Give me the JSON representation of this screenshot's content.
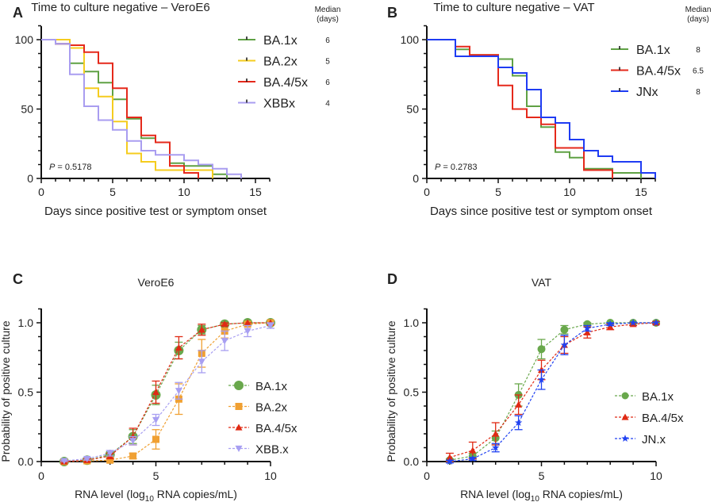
{
  "chart_data": [
    {
      "panel": "A",
      "type": "line",
      "subtype": "kaplan-meier-step",
      "title": "Time to culture negative – VeroE6",
      "xlabel": "Days since positive test or symptom onset",
      "ylabel": "",
      "xlim": [
        0,
        16
      ],
      "ylim": [
        0,
        110
      ],
      "xticks": [
        "0",
        "5",
        "10",
        "15"
      ],
      "yticks": [
        "0",
        "50",
        "100"
      ],
      "median_header": [
        "Median",
        "(days)"
      ],
      "annotation": {
        "p_label": "P",
        "p_value": "= 0.5178"
      },
      "legend_position": "top-right",
      "series": [
        {
          "name": "BA.1x",
          "color": "#5fa144",
          "median": "6",
          "steps": [
            [
              0,
              100
            ],
            [
              1,
              97
            ],
            [
              2,
              83
            ],
            [
              3,
              77
            ],
            [
              4,
              69
            ],
            [
              5,
              57
            ],
            [
              6,
              43
            ],
            [
              7,
              29
            ],
            [
              8,
              26
            ],
            [
              9,
              11
            ],
            [
              10,
              9
            ],
            [
              12,
              3
            ],
            [
              13,
              0
            ]
          ]
        },
        {
          "name": "BA.2x",
          "color": "#f5cc1e",
          "median": "5",
          "steps": [
            [
              0,
              100
            ],
            [
              2,
              94
            ],
            [
              3,
              65
            ],
            [
              4,
              59
            ],
            [
              5,
              41
            ],
            [
              6,
              18
            ],
            [
              7,
              12
            ],
            [
              8,
              6
            ],
            [
              12,
              0
            ]
          ]
        },
        {
          "name": "BA.4/5x",
          "color": "#e5291b",
          "median": "6",
          "steps": [
            [
              0,
              100
            ],
            [
              1,
              97
            ],
            [
              2,
              96
            ],
            [
              3,
              91
            ],
            [
              4,
              83
            ],
            [
              5,
              65
            ],
            [
              6,
              44
            ],
            [
              7,
              31
            ],
            [
              8,
              26
            ],
            [
              9,
              9
            ],
            [
              10,
              4
            ],
            [
              11,
              0
            ]
          ]
        },
        {
          "name": "XBBx",
          "color": "#a99df0",
          "median": "4",
          "steps": [
            [
              0,
              100
            ],
            [
              1,
              97
            ],
            [
              2,
              75
            ],
            [
              3,
              52
            ],
            [
              4,
              42
            ],
            [
              5,
              35
            ],
            [
              6,
              27
            ],
            [
              7,
              20
            ],
            [
              8,
              17
            ],
            [
              10,
              13
            ],
            [
              11,
              10
            ],
            [
              12,
              7
            ],
            [
              13,
              3
            ],
            [
              14,
              0
            ]
          ]
        }
      ]
    },
    {
      "panel": "B",
      "type": "line",
      "subtype": "kaplan-meier-step",
      "title": "Time to culture negative – VAT",
      "xlabel": "Days since positive test or symptom onset",
      "ylabel": "",
      "xlim": [
        0,
        16
      ],
      "ylim": [
        0,
        110
      ],
      "xticks": [
        "0",
        "5",
        "10",
        "15"
      ],
      "yticks": [
        "0",
        "50",
        "100"
      ],
      "median_header": [
        "Median",
        "(days)"
      ],
      "annotation": {
        "p_label": "P",
        "p_value": "= 0.2783"
      },
      "legend_position": "top-right",
      "series": [
        {
          "name": "BA.1x",
          "color": "#5fa144",
          "median": "8",
          "steps": [
            [
              0,
              100
            ],
            [
              2,
              93
            ],
            [
              3,
              89
            ],
            [
              5,
              86
            ],
            [
              6,
              74
            ],
            [
              7,
              52
            ],
            [
              8,
              37
            ],
            [
              9,
              19
            ],
            [
              10,
              15
            ],
            [
              11,
              7
            ],
            [
              13,
              4
            ],
            [
              15,
              0
            ]
          ]
        },
        {
          "name": "BA.4/5x",
          "color": "#e5291b",
          "median": "6.5",
          "steps": [
            [
              0,
              100
            ],
            [
              2,
              95
            ],
            [
              3,
              89
            ],
            [
              5,
              67
            ],
            [
              6,
              50
            ],
            [
              7,
              44
            ],
            [
              8,
              39
            ],
            [
              9,
              22
            ],
            [
              11,
              6
            ],
            [
              13,
              0
            ]
          ]
        },
        {
          "name": "JNx",
          "color": "#1f3cf3",
          "median": "8",
          "steps": [
            [
              0,
              100
            ],
            [
              2,
              88
            ],
            [
              5,
              80
            ],
            [
              6,
              76
            ],
            [
              7,
              64
            ],
            [
              8,
              44
            ],
            [
              9,
              40
            ],
            [
              10,
              28
            ],
            [
              11,
              20
            ],
            [
              12,
              16
            ],
            [
              13,
              12
            ],
            [
              15,
              4
            ],
            [
              16,
              0
            ]
          ]
        }
      ]
    },
    {
      "panel": "C",
      "type": "line",
      "subtype": "logistic-with-error-bars",
      "title": "VeroE6",
      "xlabel_main": "RNA level (log",
      "xlabel_sub": "10",
      "xlabel_tail": " RNA copies/mL)",
      "ylabel": "Probability of positive  culture",
      "xlim": [
        0,
        10
      ],
      "ylim": [
        0,
        1.1
      ],
      "xticks": [
        "0",
        "5",
        "10"
      ],
      "yticks": [
        "0.0",
        "0.5",
        "1.0"
      ],
      "legend_position": "right",
      "x": [
        1,
        2,
        3,
        4,
        5,
        6,
        7,
        8,
        9,
        10
      ],
      "series": [
        {
          "name": "BA.1x",
          "color": "#69a84c",
          "marker": "circle",
          "values": [
            0.0,
            0.01,
            0.05,
            0.18,
            0.48,
            0.8,
            0.95,
            0.99,
            1.0,
            1.0
          ],
          "errors": [
            0.01,
            0.01,
            0.02,
            0.05,
            0.07,
            0.06,
            0.03,
            0.01,
            0.0,
            0.0
          ]
        },
        {
          "name": "BA.2x",
          "color": "#f0a032",
          "marker": "square",
          "values": [
            0.0,
            0.005,
            0.01,
            0.04,
            0.16,
            0.45,
            0.78,
            0.94,
            0.99,
            1.0
          ],
          "errors": [
            0.005,
            0.005,
            0.01,
            0.02,
            0.07,
            0.11,
            0.1,
            0.05,
            0.01,
            0.0
          ]
        },
        {
          "name": "BA.4/5x",
          "color": "#e02a14",
          "marker": "triangle",
          "values": [
            0.0,
            0.01,
            0.04,
            0.18,
            0.5,
            0.82,
            0.95,
            0.99,
            1.0,
            1.0
          ],
          "errors": [
            0.005,
            0.01,
            0.02,
            0.06,
            0.08,
            0.08,
            0.04,
            0.01,
            0.0,
            0.0
          ]
        },
        {
          "name": "XBB.x",
          "color": "#a89ff2",
          "marker": "triangle-down",
          "values": [
            0.005,
            0.02,
            0.06,
            0.15,
            0.3,
            0.51,
            0.72,
            0.87,
            0.94,
            0.98
          ],
          "errors": [
            0.005,
            0.01,
            0.02,
            0.03,
            0.04,
            0.06,
            0.08,
            0.07,
            0.04,
            0.02
          ]
        }
      ]
    },
    {
      "panel": "D",
      "type": "line",
      "subtype": "logistic-with-error-bars",
      "title": "VAT",
      "xlabel_main": "RNA level (log",
      "xlabel_sub": "10",
      "xlabel_tail": " RNA copies/mL)",
      "ylabel": "Probability of positive  culture",
      "xlim": [
        0,
        10
      ],
      "ylim": [
        0,
        1.1
      ],
      "xticks": [
        "0",
        "5",
        "10"
      ],
      "yticks": [
        "0.0",
        "0.5",
        "1.0"
      ],
      "legend_position": "right",
      "x": [
        1,
        2,
        3,
        4,
        5,
        6,
        7,
        8,
        9,
        10
      ],
      "series": [
        {
          "name": "BA.1x",
          "color": "#69a84c",
          "marker": "circle",
          "values": [
            0.01,
            0.04,
            0.17,
            0.48,
            0.81,
            0.95,
            0.99,
            1.0,
            1.0,
            1.0
          ],
          "errors": [
            0.01,
            0.02,
            0.05,
            0.08,
            0.07,
            0.03,
            0.01,
            0.0,
            0.0,
            0.0
          ]
        },
        {
          "name": "BA.4/5x",
          "color": "#e02a14",
          "marker": "triangle",
          "values": [
            0.03,
            0.08,
            0.2,
            0.41,
            0.66,
            0.84,
            0.93,
            0.97,
            0.99,
            1.0
          ],
          "errors": [
            0.03,
            0.06,
            0.08,
            0.07,
            0.07,
            0.06,
            0.04,
            0.02,
            0.01,
            0.01
          ]
        },
        {
          "name": "JN.x",
          "color": "#2042f2",
          "marker": "star",
          "values": [
            0.0,
            0.02,
            0.1,
            0.28,
            0.59,
            0.84,
            0.96,
            0.99,
            1.0,
            1.0
          ],
          "errors": [
            0.01,
            0.01,
            0.03,
            0.05,
            0.07,
            0.07,
            0.02,
            0.01,
            0.0,
            0.0
          ]
        }
      ]
    }
  ]
}
